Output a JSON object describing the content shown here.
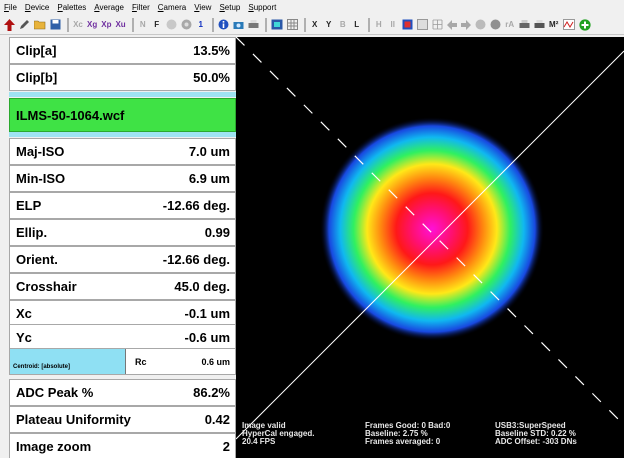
{
  "menu": [
    "File",
    "Device",
    "Palettes",
    "Average",
    "Filter",
    "Camera",
    "View",
    "Setup",
    "Support"
  ],
  "toolbar": {
    "labels": {
      "xc": "Xc",
      "xg": "Xg",
      "xp": "Xp",
      "xu": "Xu",
      "n": "N",
      "f": "F",
      "one": "1",
      "x": "X",
      "y": "Y",
      "b": "B",
      "l": "L",
      "h": "H",
      "ii": "II",
      "ra": "rA",
      "m2": "M²"
    },
    "icons": [
      "up-arrow-icon",
      "pencil-icon",
      "open-folder-icon",
      "save-icon",
      "stop-icon",
      "record-icon",
      "info-icon",
      "camera-icon",
      "printer-icon",
      "palette-icon",
      "grid-icon",
      "left-arrow-icon",
      "right-arrow-icon",
      "chart-icon",
      "add-icon"
    ]
  },
  "measurements": [
    {
      "label": "Clip[a]",
      "value": "13.5%"
    },
    {
      "label": "Clip[b]",
      "value": "50.0%"
    },
    {
      "label": "Maj-ISO",
      "value": "7.0 um"
    },
    {
      "label": "Min-ISO",
      "value": "6.9 um"
    },
    {
      "label": "ELP",
      "value": "-12.66 deg."
    },
    {
      "label": "Ellip.",
      "value": "0.99"
    },
    {
      "label": "Orient.",
      "value": "-12.66 deg."
    },
    {
      "label": "Crosshair",
      "value": "45.0 deg."
    },
    {
      "label": "Xc",
      "value": "-0.1 um"
    },
    {
      "label": "Yc",
      "value": "-0.6 um"
    },
    {
      "label": "ADC Peak %",
      "value": "86.2%"
    },
    {
      "label": "Plateau Uniformity",
      "value": "0.42"
    },
    {
      "label": "Image zoom",
      "value": "2"
    }
  ],
  "filename": "ILMS-50-1064.wcf",
  "centroid": {
    "mode": "Centroid: [absolute]",
    "rc_label": "Rc",
    "rc_value": "0.6 um"
  },
  "status": {
    "col1": [
      "Image valid",
      "HyperCal engaged.",
      "20.4 FPS"
    ],
    "col2": [
      "Frames Good: 0 Bad:0",
      "Baseline: 2.75 %",
      "Frames averaged: 0"
    ],
    "col3_link": "USB3:SuperSpeed",
    "col3": [
      "Baseline STD:  0.22 %",
      "ADC Offset: -303 DNs"
    ]
  },
  "colors": {
    "file_bg": "#3fe245",
    "band": "#9fe3f2",
    "usb_link": "#3aa0ff"
  }
}
